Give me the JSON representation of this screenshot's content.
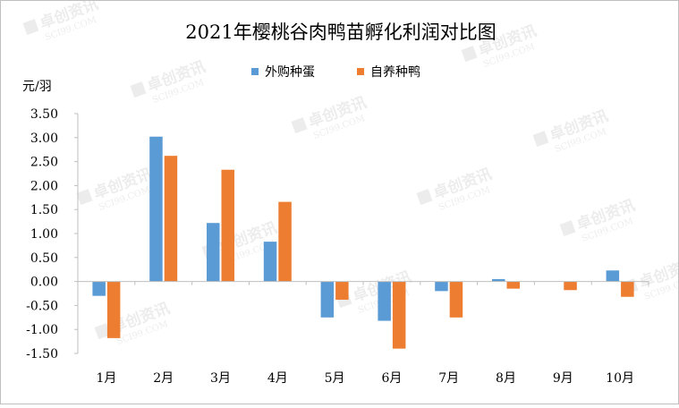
{
  "chart_data": {
    "type": "bar",
    "title": "2021年樱桃谷肉鸭苗孵化利润对比图",
    "ylabel": "元/羽",
    "xlabel": "",
    "categories": [
      "1月",
      "2月",
      "3月",
      "4月",
      "5月",
      "6月",
      "7月",
      "8月",
      "9月",
      "10月"
    ],
    "series": [
      {
        "name": "外购种蛋",
        "color": "#5b9bd5",
        "values": [
          -0.3,
          3.02,
          1.22,
          0.83,
          -0.75,
          -0.82,
          -0.2,
          0.05,
          0.0,
          0.23
        ]
      },
      {
        "name": "自养种鸭",
        "color": "#ed7d31",
        "values": [
          -1.18,
          2.62,
          2.33,
          1.66,
          -0.38,
          -1.4,
          -0.75,
          -0.15,
          -0.18,
          -0.32
        ]
      }
    ],
    "ylim": [
      -1.5,
      3.5
    ],
    "yticks": [
      "-1.50",
      "-1.00",
      "-0.50",
      "0.00",
      "0.50",
      "1.00",
      "1.50",
      "2.00",
      "2.50",
      "3.00",
      "3.50"
    ],
    "grid": false,
    "legend_position": "top"
  },
  "watermark": {
    "text": "卓创资讯",
    "subtext": "SCI99.COM"
  }
}
